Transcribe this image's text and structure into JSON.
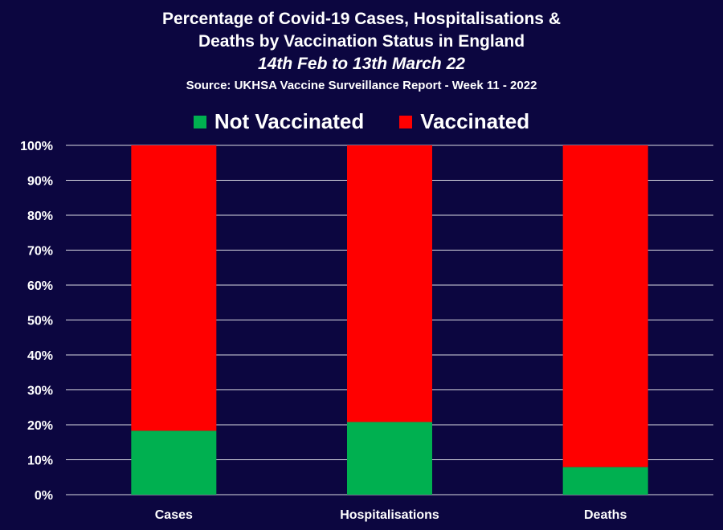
{
  "title": {
    "line1": "Percentage of Covid-19 Cases, Hospitalisations &",
    "line2": "Deaths by Vaccination Status in England",
    "period": "14th Feb to 13th March 22",
    "source": "Source: UKHSA Vaccine Surveillance Report - Week 11 - 2022"
  },
  "colors": {
    "background": "#0c0640",
    "not_vaccinated": "#00b050",
    "vaccinated": "#ff0000",
    "grid": "#ffffff"
  },
  "chart_data": {
    "type": "bar",
    "stacked": true,
    "categories": [
      "Cases",
      "Hospitalisations",
      "Deaths"
    ],
    "series": [
      {
        "name": "Not Vaccinated",
        "color": "#00b050",
        "values": [
          18.3,
          20.8,
          7.9
        ]
      },
      {
        "name": "Vaccinated",
        "color": "#ff0000",
        "values": [
          81.7,
          79.2,
          92.1
        ]
      }
    ],
    "ylim": [
      0,
      100
    ],
    "yticks": [
      0,
      10,
      20,
      30,
      40,
      50,
      60,
      70,
      80,
      90,
      100
    ],
    "ytick_labels": [
      "0%",
      "10%",
      "20%",
      "30%",
      "40%",
      "50%",
      "60%",
      "70%",
      "80%",
      "90%",
      "100%"
    ],
    "legend_position": "top",
    "grid": true
  }
}
